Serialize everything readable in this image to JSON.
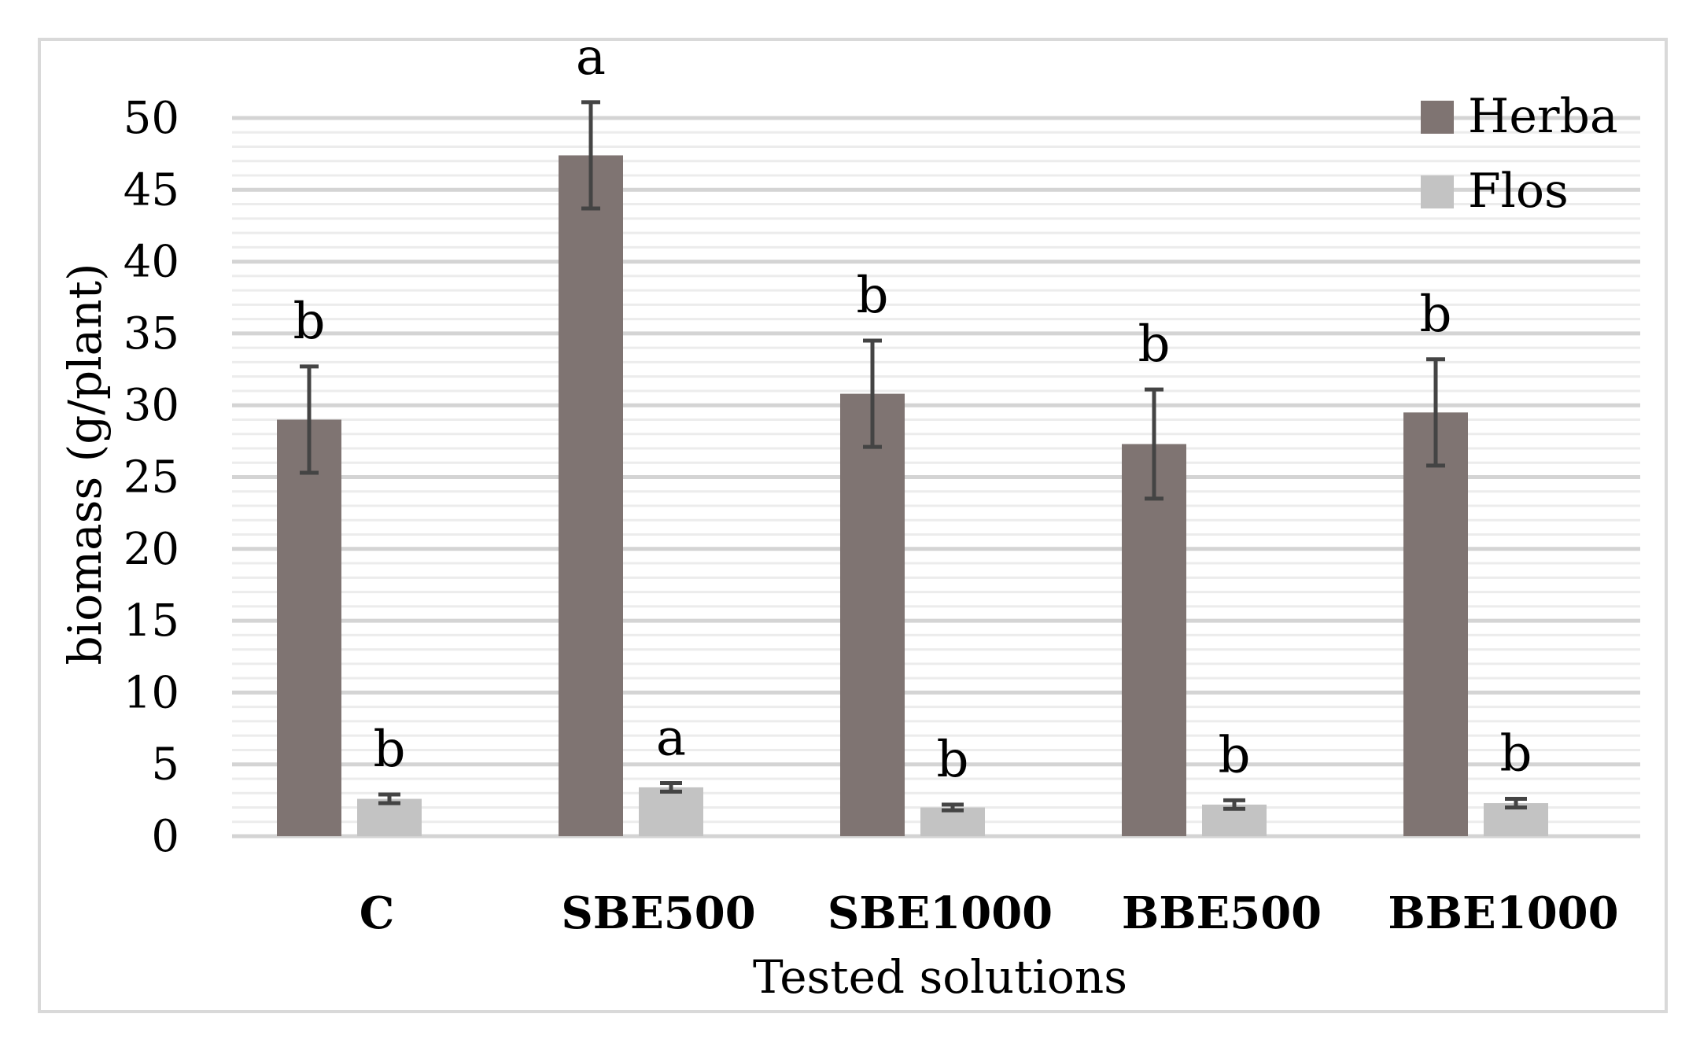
{
  "chart_data": {
    "type": "bar",
    "xlabel": "Tested solutions",
    "ylabel": "biomass (g/plant)",
    "categories": [
      "C",
      "SBE500",
      "SBE1000",
      "BBE500",
      "BBE1000"
    ],
    "ylim": [
      0,
      50
    ],
    "yticks": [
      0,
      5,
      10,
      15,
      20,
      25,
      30,
      35,
      40,
      45,
      50
    ],
    "grid": true,
    "legend_position": "top-right",
    "series": [
      {
        "name": "Herba",
        "color": "#7f7472",
        "values": [
          29.0,
          47.4,
          30.8,
          27.3,
          29.5
        ],
        "errors": [
          3.7,
          3.7,
          3.7,
          3.8,
          3.7
        ],
        "letters": [
          "b",
          "a",
          "b",
          "b",
          "b"
        ]
      },
      {
        "name": "Flos",
        "color": "#c3c3c3",
        "values": [
          2.6,
          3.4,
          2.0,
          2.2,
          2.3
        ],
        "errors": [
          0.3,
          0.3,
          0.2,
          0.3,
          0.3
        ],
        "letters": [
          "b",
          "a",
          "b",
          "b",
          "b"
        ]
      }
    ]
  }
}
